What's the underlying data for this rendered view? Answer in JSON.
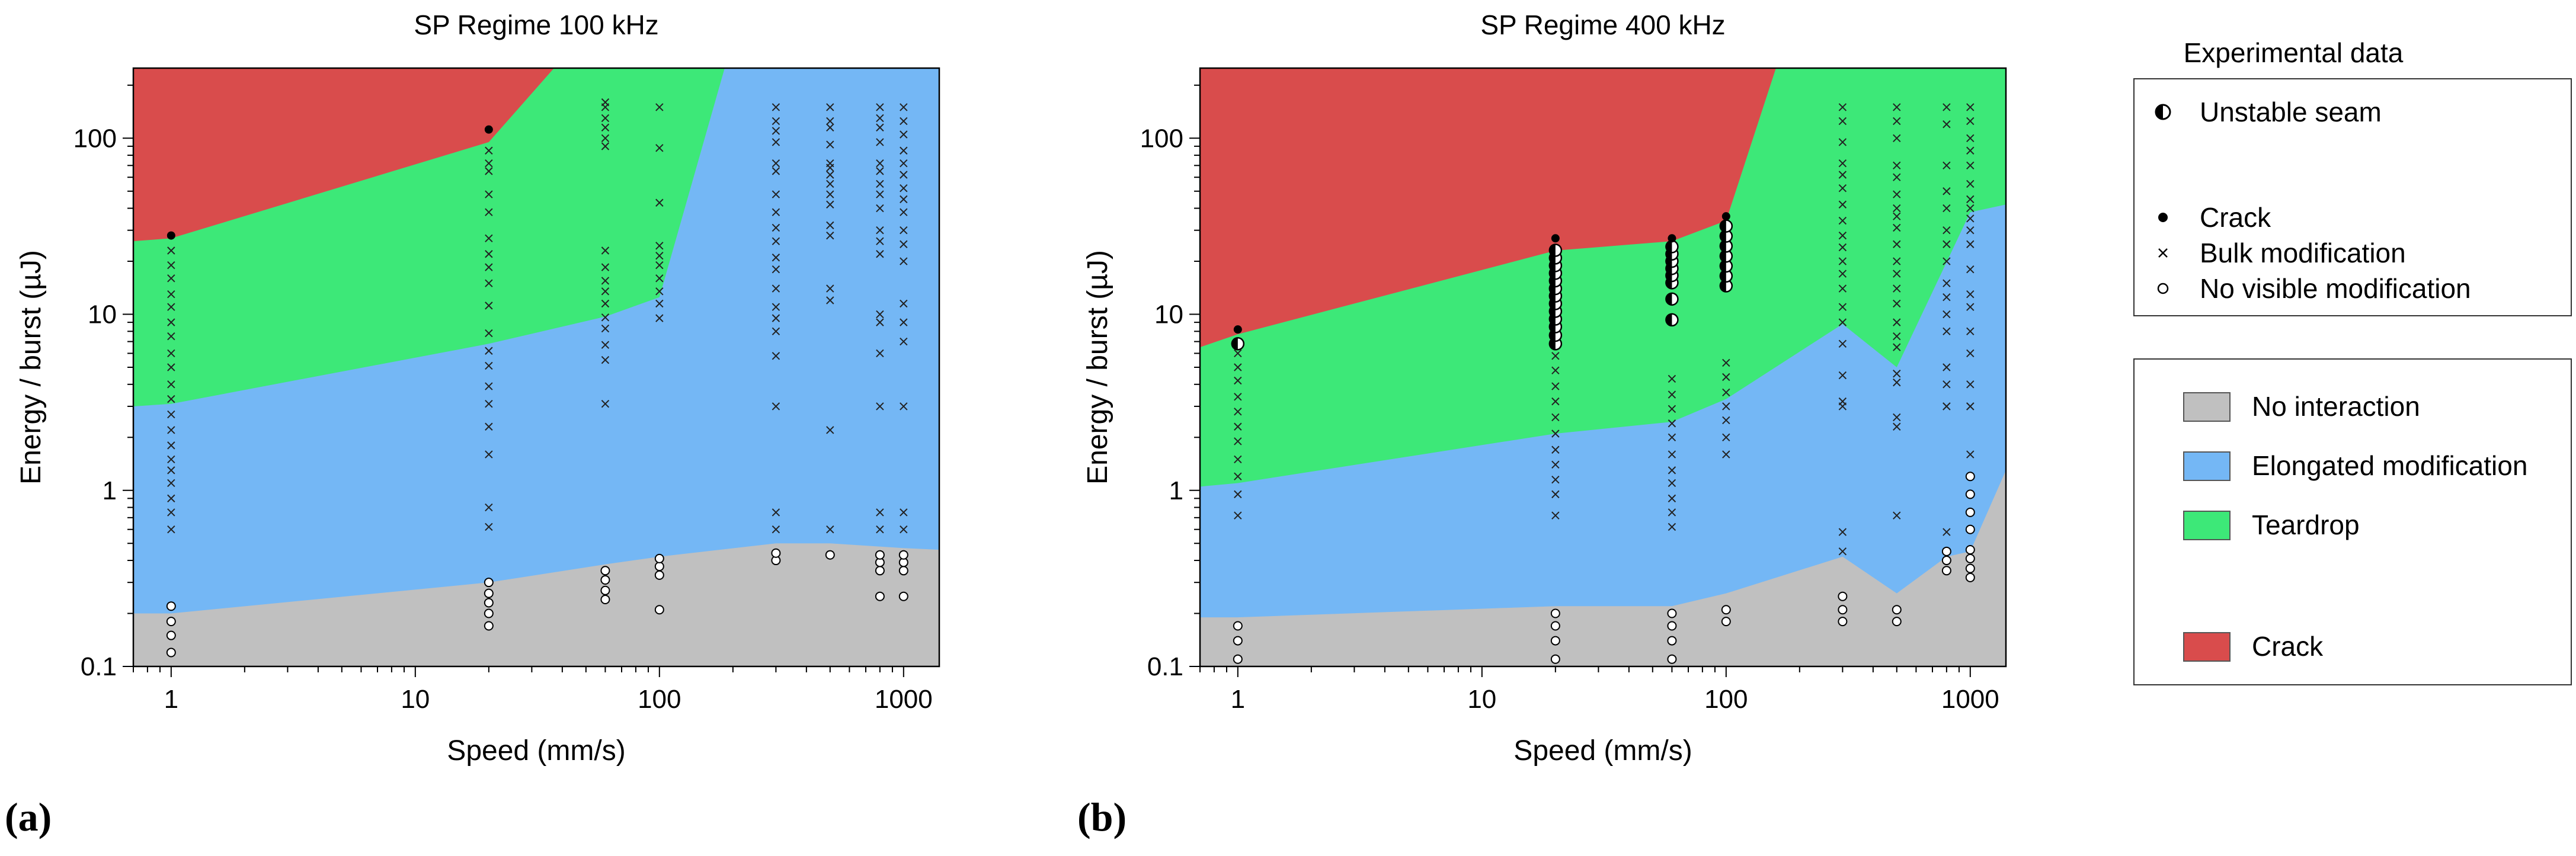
{
  "chart_data": [
    {
      "type": "area",
      "title": "SP Regime 100 kHz",
      "xlabel": "Speed (mm/s)",
      "ylabel": "Energy / burst (µJ)",
      "xscale": "log",
      "yscale": "log",
      "xlim": [
        0.7,
        1400
      ],
      "ylim": [
        0.1,
        250
      ],
      "xticks": [
        "1",
        "10",
        "100",
        "1000"
      ],
      "yticks": [
        "0.1",
        "1",
        "10",
        "100"
      ],
      "regions": [
        {
          "name": "No interaction",
          "color": "#c0c0c0",
          "upper_boundary": {
            "x": [
              0.7,
              1,
              20,
              60,
              100,
              300,
              500,
              1000,
              1400
            ],
            "y": [
              0.2,
              0.2,
              0.3,
              0.38,
              0.42,
              0.5,
              0.5,
              0.47,
              0.46
            ]
          }
        },
        {
          "name": "Elongated modification",
          "color": "#74b7f5",
          "upper_boundary": {
            "x": [
              0.7,
              1,
              20,
              60,
              100,
              185,
              1400
            ],
            "y": [
              3.0,
              3.1,
              6.8,
              9.7,
              12.5,
              250,
              250
            ]
          }
        },
        {
          "name": "Teardrop",
          "color": "#3de878",
          "upper_boundary": {
            "x": [
              0.7,
              1,
              20,
              37,
              1400
            ],
            "y": [
              26,
              27,
              95,
              250,
              250
            ]
          }
        },
        {
          "name": "Crack",
          "color": "#d94c4c",
          "upper_boundary": {
            "x": [
              0.7,
              1400
            ],
            "y": [
              250,
              250
            ]
          }
        }
      ],
      "points": {
        "bulk_modification": [
          {
            "x": 1,
            "y": [
              0.6,
              0.75,
              0.9,
              1.1,
              1.3,
              1.5,
              1.8,
              2.2,
              2.7,
              3.3,
              4,
              5,
              6,
              7.5,
              9,
              11,
              13,
              16,
              19,
              23
            ]
          },
          {
            "x": 20,
            "y": [
              0.62,
              0.8,
              1.6,
              2.3,
              3.1,
              3.9,
              5.1,
              6.2,
              7.8,
              11.2,
              15,
              18.5,
              22,
              27,
              38,
              48,
              65,
              72,
              85
            ]
          },
          {
            "x": 60,
            "y": [
              3.1,
              5.5,
              6.7,
              8.3,
              9.6,
              11.5,
              13.5,
              15.5,
              18.5,
              23,
              90,
              100,
              115,
              130,
              150,
              160
            ]
          },
          {
            "x": 100,
            "y": [
              9.5,
              11.5,
              13.5,
              16,
              19,
              21.5,
              24.5,
              43,
              88,
              150
            ]
          },
          {
            "x": 300,
            "y": [
              0.75,
              0.6,
              3,
              5.8,
              8,
              9.5,
              11,
              14,
              18,
              21,
              26,
              31,
              38,
              48,
              65,
              72,
              95,
              110,
              125,
              150
            ]
          },
          {
            "x": 500,
            "y": [
              0.6,
              2.2,
              12,
              14,
              28,
              32,
              42,
              48,
              55,
              62,
              68,
              72,
              92,
              115,
              125,
              150
            ]
          },
          {
            "x": 800,
            "y": [
              0.75,
              0.6,
              3,
              6,
              9,
              10,
              22,
              26,
              30,
              40,
              48,
              55,
              65,
              72,
              95,
              115,
              130,
              150
            ]
          },
          {
            "x": 1000,
            "y": [
              0.75,
              0.6,
              3,
              7,
              9,
              11.5,
              20,
              25,
              30,
              38,
              45,
              52,
              62,
              72,
              85,
              105,
              125,
              150
            ]
          }
        ],
        "no_visible_modification": [
          {
            "x": 1,
            "y": [
              0.12,
              0.15,
              0.18,
              0.22
            ]
          },
          {
            "x": 20,
            "y": [
              0.17,
              0.2,
              0.23,
              0.26,
              0.3
            ]
          },
          {
            "x": 60,
            "y": [
              0.24,
              0.27,
              0.31,
              0.35
            ]
          },
          {
            "x": 100,
            "y": [
              0.21,
              0.33,
              0.37,
              0.41
            ]
          },
          {
            "x": 300,
            "y": [
              0.4,
              0.44
            ]
          },
          {
            "x": 500,
            "y": [
              0.43
            ]
          },
          {
            "x": 800,
            "y": [
              0.25,
              0.35,
              0.39,
              0.43
            ]
          },
          {
            "x": 1000,
            "y": [
              0.25,
              0.35,
              0.39,
              0.43
            ]
          }
        ],
        "crack": [
          {
            "x": 1,
            "y": [
              28
            ]
          },
          {
            "x": 20,
            "y": [
              112
            ]
          }
        ],
        "unstable_seam": []
      }
    },
    {
      "type": "area",
      "title": "SP Regime 400 kHz",
      "xlabel": "Speed (mm/s)",
      "ylabel": "Energy / burst (µJ)",
      "xscale": "log",
      "yscale": "log",
      "xlim": [
        0.7,
        1400
      ],
      "ylim": [
        0.1,
        250
      ],
      "xticks": [
        "1",
        "10",
        "100",
        "1000"
      ],
      "yticks": [
        "0.1",
        "1",
        "10",
        "100"
      ],
      "regions": [
        {
          "name": "No interaction",
          "color": "#c0c0c0",
          "upper_boundary": {
            "x": [
              0.7,
              1,
              20,
              60,
              100,
              300,
              500,
              800,
              1000,
              1400
            ],
            "y": [
              0.19,
              0.19,
              0.22,
              0.22,
              0.26,
              0.42,
              0.26,
              0.42,
              0.45,
              1.3
            ]
          }
        },
        {
          "name": "Elongated modification",
          "color": "#74b7f5",
          "upper_boundary": {
            "x": [
              0.7,
              1,
              20,
              60,
              100,
              300,
              500,
              1000,
              1400
            ],
            "y": [
              1.05,
              1.1,
              2.1,
              2.45,
              3.3,
              8.8,
              5.0,
              38,
              42
            ]
          }
        },
        {
          "name": "Teardrop",
          "color": "#3de878",
          "upper_boundary": {
            "x": [
              0.7,
              1,
              20,
              60,
              100,
              160,
              1400
            ],
            "y": [
              6.5,
              7.7,
              23,
              26,
              34,
              250,
              250
            ]
          }
        },
        {
          "name": "Crack",
          "color": "#d94c4c",
          "upper_boundary": {
            "x": [
              0.7,
              1400
            ],
            "y": [
              250,
              250
            ]
          }
        }
      ],
      "points": {
        "bulk_modification": [
          {
            "x": 1,
            "y": [
              0.72,
              0.95,
              1.2,
              1.5,
              1.9,
              2.3,
              2.8,
              3.4,
              4.2,
              5,
              6
            ]
          },
          {
            "x": 20,
            "y": [
              0.72,
              0.95,
              1.15,
              1.4,
              1.7,
              2.1,
              2.6,
              3.2,
              3.9,
              4.8,
              5.8
            ]
          },
          {
            "x": 60,
            "y": [
              0.62,
              0.75,
              0.9,
              1.1,
              1.3,
              1.6,
              2,
              2.4,
              2.9,
              3.5,
              4.3
            ]
          },
          {
            "x": 100,
            "y": [
              1.6,
              2,
              2.5,
              3,
              3.6,
              4.4,
              5.3
            ]
          },
          {
            "x": 300,
            "y": [
              0.45,
              0.58,
              3,
              3.2,
              4.5,
              6.8,
              9,
              11,
              14,
              17,
              20,
              24,
              28,
              34,
              42,
              52,
              62,
              72,
              95,
              125,
              150
            ]
          },
          {
            "x": 500,
            "y": [
              0.72,
              2.3,
              2.6,
              4.1,
              4.6,
              6.5,
              7.5,
              9,
              11.5,
              14,
              17,
              20,
              25,
              31,
              36,
              40,
              48,
              60,
              70,
              100,
              125,
              150
            ]
          },
          {
            "x": 800,
            "y": [
              0.58,
              3,
              3,
              4,
              5,
              8,
              10,
              12.5,
              15,
              20,
              25,
              30,
              40,
              50,
              70,
              120,
              150
            ]
          },
          {
            "x": 1000,
            "y": [
              1.6,
              3,
              3,
              4,
              6,
              8,
              11,
              13,
              18,
              25,
              30,
              35,
              40,
              45,
              55,
              70,
              85,
              100,
              125,
              150
            ]
          }
        ],
        "no_visible_modification": [
          {
            "x": 1,
            "y": [
              0.11,
              0.14,
              0.17
            ]
          },
          {
            "x": 20,
            "y": [
              0.11,
              0.14,
              0.17,
              0.2
            ]
          },
          {
            "x": 60,
            "y": [
              0.11,
              0.14,
              0.17,
              0.2
            ]
          },
          {
            "x": 100,
            "y": [
              0.18,
              0.21
            ]
          },
          {
            "x": 300,
            "y": [
              0.18,
              0.21,
              0.25
            ]
          },
          {
            "x": 500,
            "y": [
              0.18,
              0.21
            ]
          },
          {
            "x": 800,
            "y": [
              0.35,
              0.4,
              0.45
            ]
          },
          {
            "x": 1000,
            "y": [
              0.32,
              0.36,
              0.41,
              0.46,
              0.6,
              0.75,
              0.95,
              1.2
            ]
          }
        ],
        "crack": [
          {
            "x": 1,
            "y": [
              8.2
            ]
          },
          {
            "x": 20,
            "y": [
              27
            ]
          },
          {
            "x": 60,
            "y": [
              27
            ]
          },
          {
            "x": 100,
            "y": [
              36
            ]
          }
        ],
        "unstable_seam": [
          {
            "x": 1,
            "y": [
              6.8
            ]
          },
          {
            "x": 20,
            "y": [
              6.8,
              7.6,
              8.5,
              9.4,
              10.4,
              11.5,
              12.7,
              14,
              15.5,
              17.1,
              18.9,
              20.9,
              23.1
            ]
          },
          {
            "x": 60,
            "y": [
              9.3,
              12.2,
              15.1,
              16.6,
              18.2,
              20,
              22,
              24.2
            ]
          },
          {
            "x": 100,
            "y": [
              14.5,
              16.5,
              18.8,
              21.4,
              24.4,
              27.8,
              31.7
            ]
          }
        ]
      }
    }
  ],
  "panel_labels": [
    "(a)",
    "(b)"
  ],
  "legend_markers": {
    "title": "Experimental data",
    "items": [
      "Unstable seam",
      "Crack",
      "Bulk modification",
      "No visible modification"
    ]
  },
  "legend_regions": {
    "items": [
      {
        "label": "No interaction",
        "color": "#c0c0c0"
      },
      {
        "label": "Elongated modification",
        "color": "#74b7f5"
      },
      {
        "label": "Teardrop",
        "color": "#3de878"
      },
      {
        "label": "Crack",
        "color": "#d94c4c"
      }
    ]
  }
}
